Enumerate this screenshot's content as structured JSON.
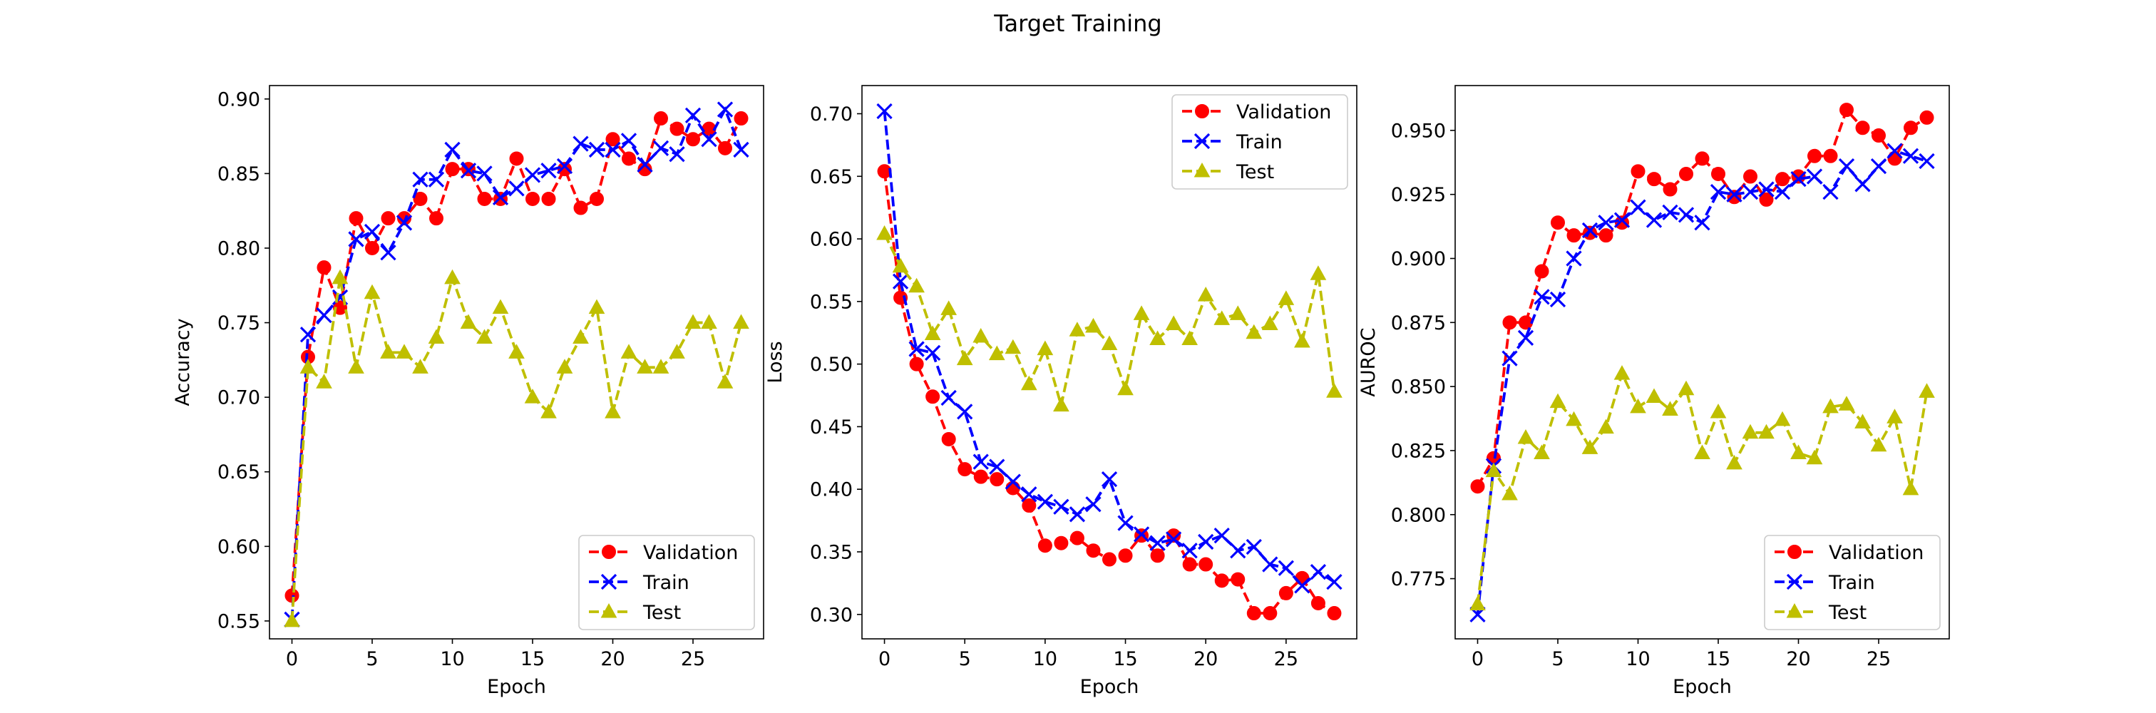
{
  "suptitle": "Target Training",
  "chart_data": [
    {
      "type": "line",
      "xlabel": "Epoch",
      "ylabel": "Accuracy",
      "xlim": [
        -1.4,
        29.4
      ],
      "ylim": [
        0.538,
        0.909
      ],
      "xticks": [
        0,
        5,
        10,
        15,
        20,
        25
      ],
      "yticks": [
        0.55,
        0.6,
        0.65,
        0.7,
        0.75,
        0.8,
        0.85,
        0.9
      ],
      "ytick_labels": [
        "0.55",
        "0.60",
        "0.65",
        "0.70",
        "0.75",
        "0.80",
        "0.85",
        "0.90"
      ],
      "legend_loc": "lower right",
      "x": [
        0,
        1,
        2,
        3,
        4,
        5,
        6,
        7,
        8,
        9,
        10,
        11,
        12,
        13,
        14,
        15,
        16,
        17,
        18,
        19,
        20,
        21,
        22,
        23,
        24,
        25,
        26,
        27,
        28
      ],
      "series": [
        {
          "name": "Validation",
          "color": "#ff0000",
          "marker": "circle",
          "values": [
            0.567,
            0.727,
            0.787,
            0.76,
            0.82,
            0.8,
            0.82,
            0.82,
            0.833,
            0.82,
            0.853,
            0.853,
            0.833,
            0.833,
            0.86,
            0.833,
            0.833,
            0.853,
            0.827,
            0.833,
            0.873,
            0.86,
            0.853,
            0.887,
            0.88,
            0.873,
            0.88,
            0.867,
            0.887
          ]
        },
        {
          "name": "Train",
          "color": "#0000ff",
          "marker": "x",
          "values": [
            0.551,
            0.742,
            0.755,
            0.767,
            0.806,
            0.811,
            0.797,
            0.817,
            0.846,
            0.846,
            0.866,
            0.852,
            0.85,
            0.834,
            0.84,
            0.849,
            0.852,
            0.855,
            0.87,
            0.866,
            0.866,
            0.872,
            0.856,
            0.867,
            0.863,
            0.889,
            0.873,
            0.893,
            0.866
          ]
        },
        {
          "name": "Test",
          "color": "#bfbf00",
          "marker": "triangle",
          "values": [
            0.55,
            0.72,
            0.71,
            0.78,
            0.72,
            0.77,
            0.73,
            0.73,
            0.72,
            0.74,
            0.78,
            0.75,
            0.74,
            0.76,
            0.73,
            0.7,
            0.69,
            0.72,
            0.74,
            0.76,
            0.69,
            0.73,
            0.72,
            0.72,
            0.73,
            0.75,
            0.75,
            0.71,
            0.75
          ]
        }
      ]
    },
    {
      "type": "line",
      "xlabel": "Epoch",
      "ylabel": "Loss",
      "xlim": [
        -1.4,
        29.4
      ],
      "ylim": [
        0.2805,
        0.7225
      ],
      "xticks": [
        0,
        5,
        10,
        15,
        20,
        25
      ],
      "yticks": [
        0.3,
        0.35,
        0.4,
        0.45,
        0.5,
        0.55,
        0.6,
        0.65,
        0.7
      ],
      "ytick_labels": [
        "0.30",
        "0.35",
        "0.40",
        "0.45",
        "0.50",
        "0.55",
        "0.60",
        "0.65",
        "0.70"
      ],
      "legend_loc": "upper right",
      "x": [
        0,
        1,
        2,
        3,
        4,
        5,
        6,
        7,
        8,
        9,
        10,
        11,
        12,
        13,
        14,
        15,
        16,
        17,
        18,
        19,
        20,
        21,
        22,
        23,
        24,
        25,
        26,
        27,
        28
      ],
      "series": [
        {
          "name": "Validation",
          "color": "#ff0000",
          "marker": "circle",
          "values": [
            0.654,
            0.553,
            0.5,
            0.474,
            0.44,
            0.416,
            0.41,
            0.408,
            0.401,
            0.387,
            0.355,
            0.357,
            0.361,
            0.351,
            0.344,
            0.347,
            0.363,
            0.347,
            0.363,
            0.34,
            0.34,
            0.327,
            0.328,
            0.301,
            0.301,
            0.317,
            0.329,
            0.309,
            0.301
          ]
        },
        {
          "name": "Train",
          "color": "#0000ff",
          "marker": "x",
          "values": [
            0.702,
            0.566,
            0.512,
            0.509,
            0.473,
            0.462,
            0.422,
            0.418,
            0.406,
            0.396,
            0.39,
            0.386,
            0.38,
            0.388,
            0.408,
            0.373,
            0.364,
            0.357,
            0.36,
            0.351,
            0.358,
            0.363,
            0.351,
            0.354,
            0.34,
            0.337,
            0.323,
            0.334,
            0.326
          ]
        },
        {
          "name": "Test",
          "color": "#bfbf00",
          "marker": "triangle",
          "values": [
            0.604,
            0.578,
            0.562,
            0.524,
            0.544,
            0.504,
            0.522,
            0.508,
            0.513,
            0.484,
            0.512,
            0.467,
            0.527,
            0.53,
            0.516,
            0.48,
            0.54,
            0.52,
            0.532,
            0.52,
            0.555,
            0.536,
            0.54,
            0.525,
            0.532,
            0.552,
            0.518,
            0.572,
            0.478
          ]
        }
      ]
    },
    {
      "type": "line",
      "xlabel": "Epoch",
      "ylabel": "AUROC",
      "xlim": [
        -1.4,
        29.4
      ],
      "ylim": [
        0.7515,
        0.9675
      ],
      "xticks": [
        0,
        5,
        10,
        15,
        20,
        25
      ],
      "yticks": [
        0.775,
        0.8,
        0.825,
        0.85,
        0.875,
        0.9,
        0.925,
        0.95
      ],
      "ytick_labels": [
        "0.775",
        "0.800",
        "0.825",
        "0.850",
        "0.875",
        "0.900",
        "0.925",
        "0.950"
      ],
      "legend_loc": "lower right",
      "x": [
        0,
        1,
        2,
        3,
        4,
        5,
        6,
        7,
        8,
        9,
        10,
        11,
        12,
        13,
        14,
        15,
        16,
        17,
        18,
        19,
        20,
        21,
        22,
        23,
        24,
        25,
        26,
        27,
        28
      ],
      "series": [
        {
          "name": "Validation",
          "color": "#ff0000",
          "marker": "circle",
          "values": [
            0.811,
            0.822,
            0.875,
            0.875,
            0.895,
            0.914,
            0.909,
            0.91,
            0.909,
            0.914,
            0.934,
            0.931,
            0.927,
            0.933,
            0.939,
            0.933,
            0.924,
            0.932,
            0.923,
            0.931,
            0.932,
            0.94,
            0.94,
            0.958,
            0.951,
            0.948,
            0.939,
            0.951,
            0.955
          ]
        },
        {
          "name": "Train",
          "color": "#0000ff",
          "marker": "x",
          "values": [
            0.761,
            0.819,
            0.861,
            0.869,
            0.885,
            0.884,
            0.9,
            0.911,
            0.914,
            0.915,
            0.92,
            0.915,
            0.918,
            0.917,
            0.914,
            0.926,
            0.925,
            0.926,
            0.927,
            0.926,
            0.931,
            0.932,
            0.926,
            0.936,
            0.929,
            0.936,
            0.942,
            0.94,
            0.938
          ]
        },
        {
          "name": "Test",
          "color": "#bfbf00",
          "marker": "triangle",
          "values": [
            0.765,
            0.817,
            0.808,
            0.83,
            0.824,
            0.844,
            0.837,
            0.826,
            0.834,
            0.855,
            0.842,
            0.846,
            0.841,
            0.849,
            0.824,
            0.84,
            0.82,
            0.832,
            0.832,
            0.837,
            0.824,
            0.822,
            0.842,
            0.843,
            0.836,
            0.827,
            0.838,
            0.81,
            0.848
          ]
        }
      ]
    }
  ]
}
